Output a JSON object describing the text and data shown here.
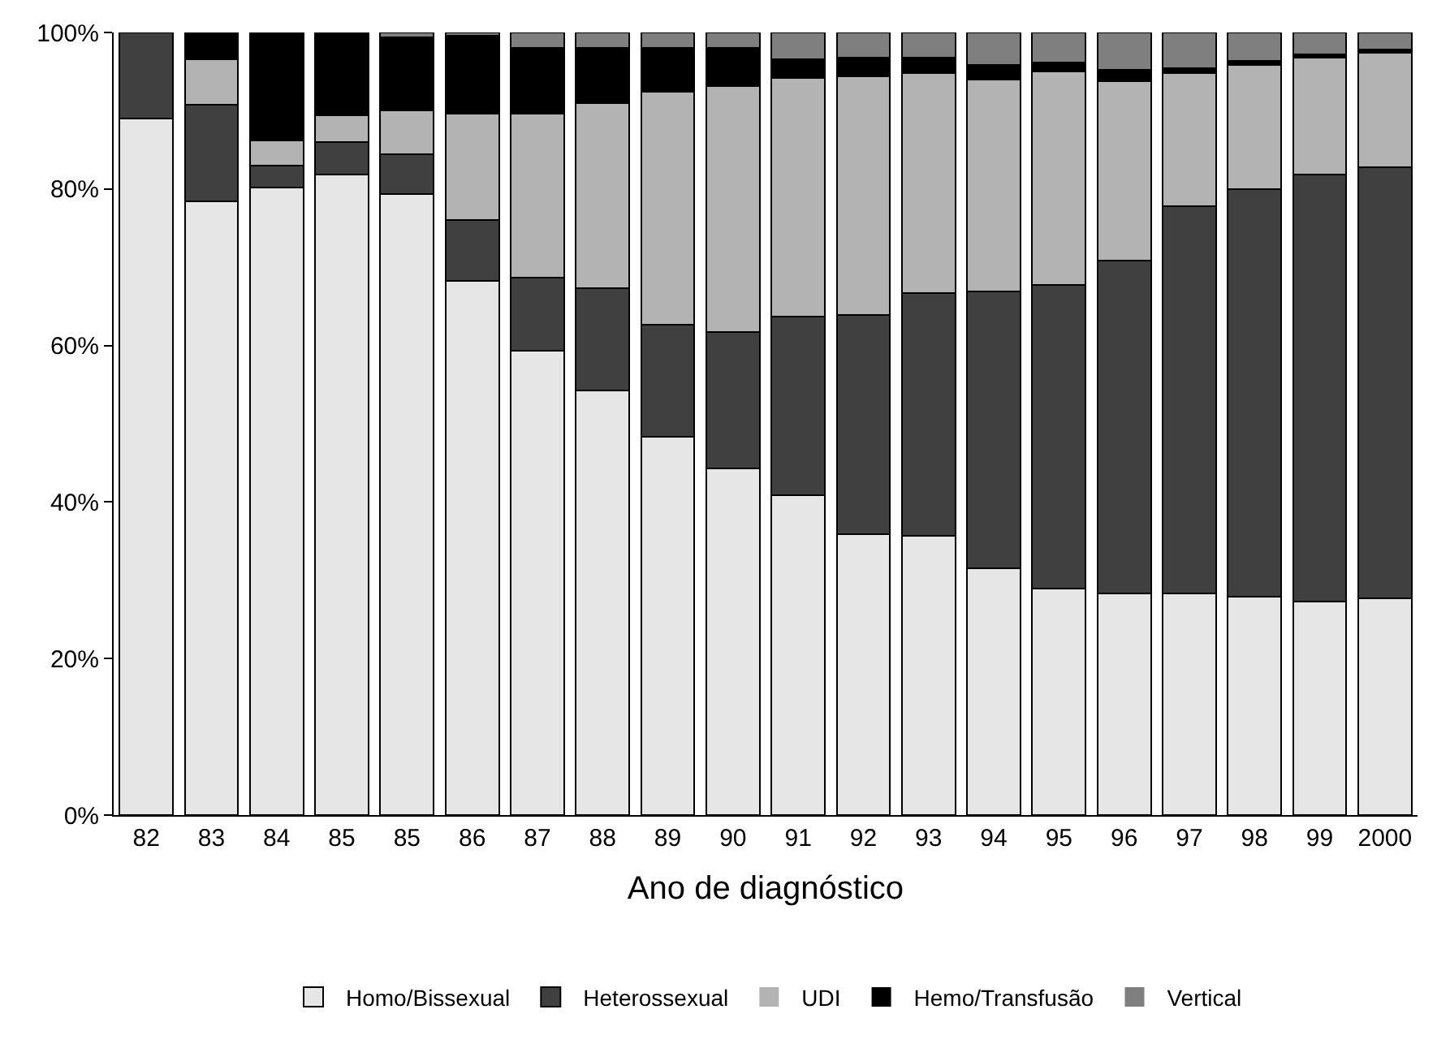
{
  "chart_data": {
    "type": "bar",
    "stacked": true,
    "xlabel": "Ano de diagnóstico",
    "categories": [
      "82",
      "83",
      "84",
      "85",
      "85",
      "86",
      "87",
      "88",
      "89",
      "90",
      "91",
      "92",
      "93",
      "94",
      "95",
      "96",
      "97",
      "98",
      "99",
      "2000"
    ],
    "series": [
      {
        "name": "Homo/Bissexual",
        "color": "#e6e6e6",
        "values": [
          89,
          78.4,
          80.2,
          81.8,
          79.4,
          68.3,
          59.3,
          54.3,
          48.3,
          44.3,
          40.9,
          35.9,
          35.7,
          31.5,
          28.9,
          28.3,
          28.3,
          27.9,
          27.3,
          27.7
        ]
      },
      {
        "name": "Heterossexual",
        "color": "#404040",
        "values": [
          11,
          12.4,
          2.8,
          4.2,
          5.0,
          7.7,
          9.4,
          13.0,
          14.4,
          17.4,
          22.8,
          28.0,
          31.0,
          35.4,
          38.8,
          42.6,
          49.5,
          52.1,
          54.5,
          55.1
        ]
      },
      {
        "name": "UDI",
        "color": "#b3b3b3",
        "values": [
          0,
          5.8,
          3.2,
          3.4,
          5.6,
          13.6,
          20.9,
          23.7,
          29.7,
          31.5,
          30.5,
          30.5,
          28.1,
          27.1,
          27.3,
          22.9,
          17.0,
          15.8,
          15.0,
          14.6
        ]
      },
      {
        "name": "Hemo/Transfusão",
        "color": "#000000",
        "values": [
          0,
          3.4,
          13.8,
          10.6,
          9.4,
          10.0,
          8.4,
          7.0,
          5.6,
          4.8,
          2.4,
          2.4,
          2.0,
          1.8,
          1.2,
          1.4,
          0.6,
          0.6,
          0.4,
          0.4
        ]
      },
      {
        "name": "Vertical",
        "color": "#7f7f7f",
        "values": [
          0,
          0,
          0,
          0,
          0.6,
          0.4,
          2,
          2,
          2,
          2,
          3.4,
          3.2,
          3.2,
          4.2,
          3.8,
          4.8,
          4.6,
          3.6,
          2.8,
          2.2
        ]
      }
    ],
    "ylim": [
      0,
      100
    ],
    "yticks": [
      {
        "value": 0,
        "label": "0%"
      },
      {
        "value": 20,
        "label": "20%"
      },
      {
        "value": 40,
        "label": "40%"
      },
      {
        "value": 60,
        "label": "60%"
      },
      {
        "value": 80,
        "label": "80%"
      },
      {
        "value": 100,
        "label": "100%"
      }
    ],
    "grid": false,
    "legend": "bottom"
  }
}
